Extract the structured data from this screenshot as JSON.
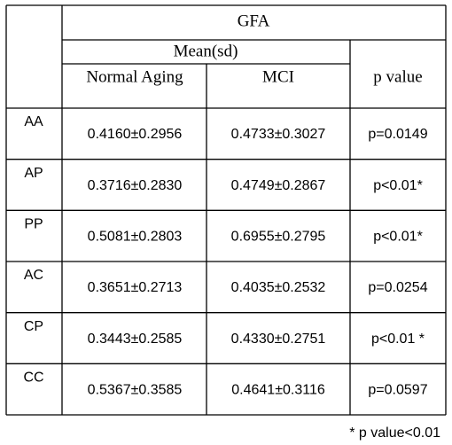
{
  "table": {
    "title": "GFA",
    "subtitle": "Mean(sd)",
    "columns": [
      "Normal Aging",
      "MCI",
      "p value"
    ],
    "rows": [
      [
        "AA",
        "0.4160±0.2956",
        "0.4733±0.3027",
        "p=0.0149"
      ],
      [
        "AP",
        "0.3716±0.2830",
        "0.4749±0.2867",
        "p<0.01*"
      ],
      [
        "PP",
        "0.5081±0.2803",
        "0.6955±0.2795",
        "p<0.01*"
      ],
      [
        "AC",
        "0.3651±0.2713",
        "0.4035±0.2532",
        "p=0.0254"
      ],
      [
        "CP",
        "0.3443±0.2585",
        "0.4330±0.2751",
        "p<0.01 *"
      ],
      [
        "CC",
        "0.5367±0.3585",
        "0.4641±0.3116",
        "p=0.0597"
      ]
    ],
    "footnote": "* p value<0.01"
  }
}
